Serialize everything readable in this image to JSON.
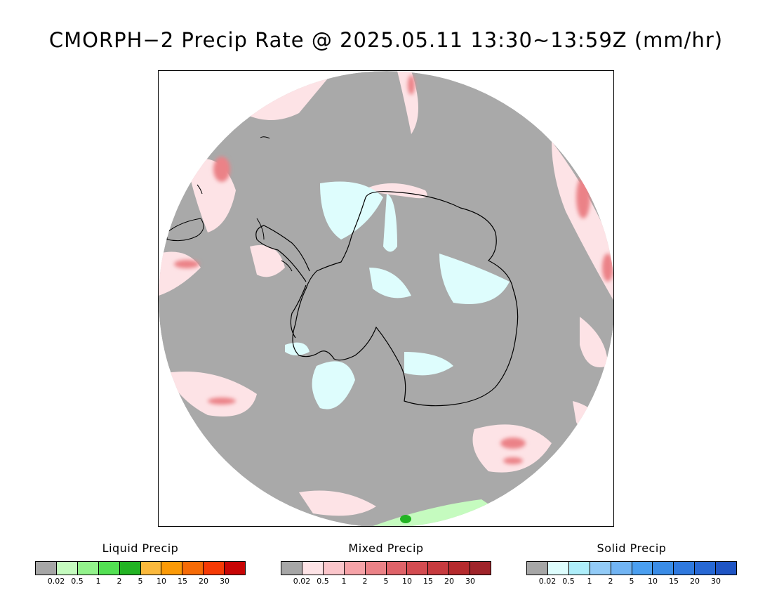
{
  "title": "CMORPH−2 Precip Rate @ 2025.05.11 13:30~13:59Z (mm/hr)",
  "map": {
    "projection": "south polar stereographic",
    "region": "Antarctica / Southern Ocean",
    "no_data_color": "#a9a9a9",
    "outside_color": "#ffffff",
    "coastline_color": "#000000"
  },
  "legends": [
    {
      "title": "Liquid Precip",
      "colors": [
        "#a6a6a6",
        "#c5fbbf",
        "#93f28c",
        "#53e053",
        "#22b323",
        "#fbb93c",
        "#fb9a07",
        "#f66b06",
        "#f63a05",
        "#c80505"
      ],
      "ticks": [
        "0.02",
        "0.5",
        "1",
        "2",
        "5",
        "10",
        "15",
        "20",
        "30"
      ]
    },
    {
      "title": "Mixed Precip",
      "colors": [
        "#a6a6a6",
        "#fde3e6",
        "#fbc6cb",
        "#f6a3a8",
        "#eb8287",
        "#df6369",
        "#d34c51",
        "#c73b3f",
        "#b52a2d",
        "#a0242a"
      ],
      "ticks": [
        "0.02",
        "0.5",
        "1",
        "2",
        "5",
        "10",
        "15",
        "20",
        "30"
      ]
    },
    {
      "title": "Solid Precip",
      "colors": [
        "#a6a6a6",
        "#defdfd",
        "#aeeefa",
        "#92cbf7",
        "#71b4f3",
        "#4b9ff0",
        "#3a8ce6",
        "#2f79de",
        "#2768d4",
        "#1f55c4"
      ],
      "ticks": [
        "0.02",
        "0.5",
        "1",
        "2",
        "5",
        "10",
        "15",
        "20",
        "30"
      ]
    }
  ]
}
